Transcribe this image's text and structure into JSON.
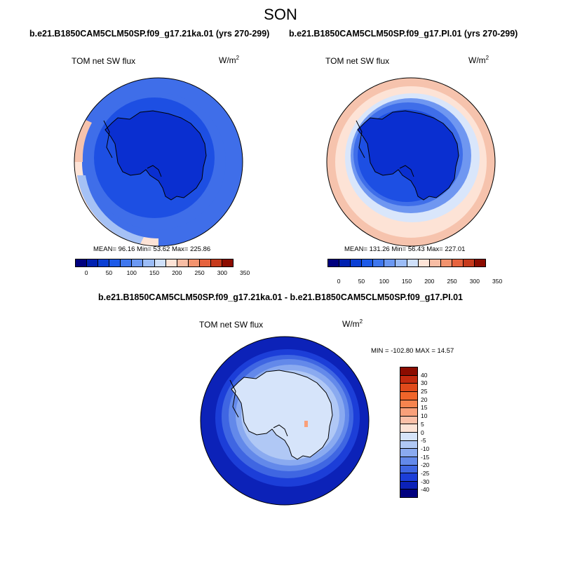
{
  "figure": {
    "season": "SON"
  },
  "panels": [
    {
      "title": "b.e21.B1850CAM5CLM50SP.f09_g17.21ka.01 (yrs 270-299)",
      "variable": "TOM net SW flux",
      "units_base": "W/m",
      "units_exp": "2",
      "stats": "MEAN=  96.16  Min=  53.62  Max= 225.86"
    },
    {
      "title": "b.e21.B1850CAM5CLM50SP.f09_g17.PI.01 (yrs 270-299)",
      "variable": "TOM net SW flux",
      "units_base": "W/m",
      "units_exp": "2",
      "stats": "MEAN= 131.26  Min=  56.43  Max= 227.01"
    },
    {
      "title": "b.e21.B1850CAM5CLM50SP.f09_g17.21ka.01 - b.e21.B1850CAM5CLM50SP.f09_g17.PI.01",
      "variable": "TOM net SW flux",
      "units_base": "W/m",
      "units_exp": "2",
      "stats": "MIN = -102.80 MAX =  14.57"
    }
  ],
  "colorbar_abs": {
    "colors": [
      "#00007f",
      "#0020b0",
      "#0a3fd4",
      "#1d5ae8",
      "#3f77ee",
      "#6b98f2",
      "#9bbcf6",
      "#cfe0fa",
      "#fde3d6",
      "#f8bda4",
      "#f2936e",
      "#e6633e",
      "#c63a1c",
      "#8c0c00"
    ],
    "ticks": [
      "0",
      "50",
      "100",
      "150",
      "200",
      "250",
      "300",
      "350"
    ]
  },
  "colorbar_diff": {
    "colors": [
      "#8c0c00",
      "#c32a0f",
      "#e04a1b",
      "#f0652a",
      "#f6844f",
      "#f9a07a",
      "#fbc0a8",
      "#fde3d6",
      "#d6e4fa",
      "#b0c8f5",
      "#8aaaf0",
      "#6389ea",
      "#3f66e2",
      "#1c3ed8",
      "#0c22b8",
      "#00007f"
    ],
    "ticks": [
      "40",
      "30",
      "25",
      "20",
      "15",
      "10",
      "5",
      "0",
      "-5",
      "-10",
      "-15",
      "-20",
      "-25",
      "-30",
      "-40"
    ]
  },
  "map_colors": {
    "deep_blue": "#0a2fd0",
    "mid_blue": "#1d4fe3",
    "medium_blue": "#3f6ee9",
    "light_blue": "#6f97f1",
    "pale_blue": "#a5c1f5",
    "very_pale_blue": "#d9e6fb",
    "near_white": "#eef3fd",
    "pale_salmon": "#fde3d6",
    "salmon": "#f6c3ad",
    "coast": "#000000"
  }
}
